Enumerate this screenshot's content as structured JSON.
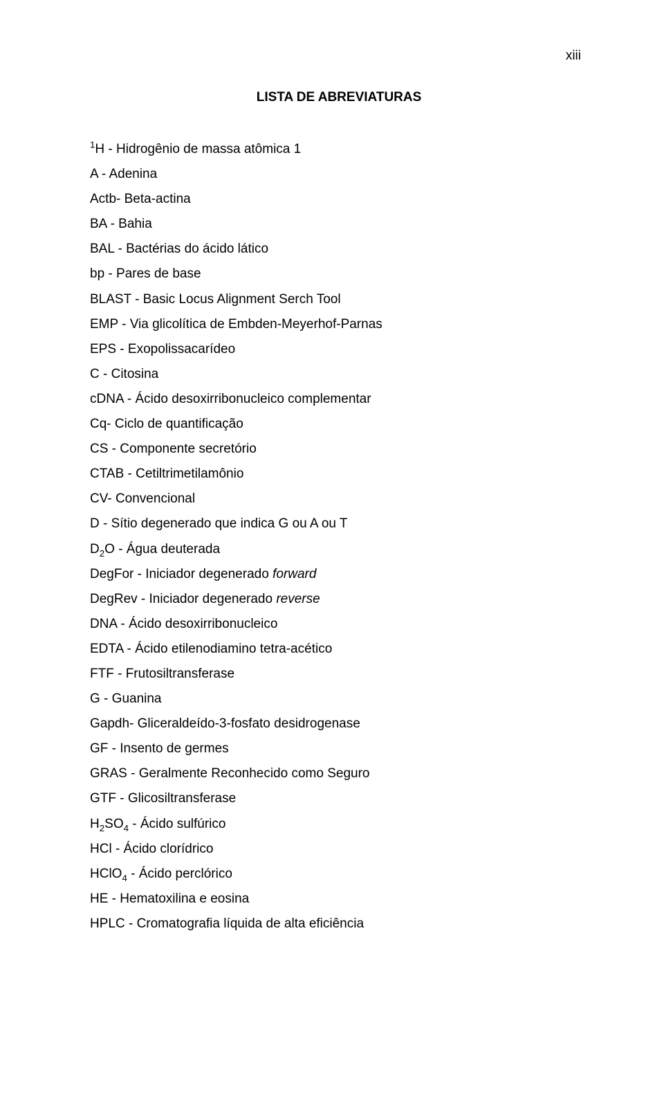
{
  "page_number": "xiii",
  "title": "LISTA DE ABREVIATURAS",
  "colors": {
    "background": "#ffffff",
    "text": "#000000"
  },
  "typography": {
    "body_fontsize_pt": 14,
    "title_fontsize_pt": 14,
    "line_height": 1.9,
    "font_family": "Arial"
  },
  "entries": [
    {
      "prefix_sup": "1",
      "text": "H - Hidrogênio de massa atômica 1"
    },
    {
      "text": "A - Adenina"
    },
    {
      "text": "Actb- Beta-actina"
    },
    {
      "text": "BA - Bahia"
    },
    {
      "text": "BAL - Bactérias do ácido lático"
    },
    {
      "text": "bp - Pares de base"
    },
    {
      "text": "BLAST - Basic Locus Alignment Serch Tool"
    },
    {
      "text": "EMP - Via glicolítica de Embden-Meyerhof-Parnas"
    },
    {
      "text": "EPS - Exopolissacarídeo"
    },
    {
      "text": "C - Citosina"
    },
    {
      "text": "cDNA - Ácido desoxirribonucleico complementar"
    },
    {
      "text": "Cq- Ciclo de quantificação"
    },
    {
      "text": "CS - Componente secretório"
    },
    {
      "text": "CTAB - Cetiltrimetilamônio"
    },
    {
      "text": "CV- Convencional"
    },
    {
      "text": "D - Sítio degenerado que indica G ou A ou T"
    },
    {
      "before_sub": "D",
      "sub": "2",
      "text": "O - Água deuterada"
    },
    {
      "text": "DegFor - Iniciador degenerado ",
      "italic_suffix": "forward"
    },
    {
      "text": "DegRev - Iniciador degenerado ",
      "italic_suffix": "reverse"
    },
    {
      "text": "DNA - Ácido desoxirribonucleico"
    },
    {
      "text": "EDTA - Ácido etilenodiamino tetra-acético"
    },
    {
      "text": "FTF - Frutosiltransferase"
    },
    {
      "text": "G - Guanina"
    },
    {
      "text": "Gapdh- Gliceraldeído-3-fosfato desidrogenase"
    },
    {
      "text": "GF - Insento de germes"
    },
    {
      "text": "GRAS - Geralmente Reconhecido como Seguro"
    },
    {
      "text": "GTF - Glicosiltransferase"
    },
    {
      "before_sub": "H",
      "sub": "2",
      "after_sub": "SO",
      "sub2": "4",
      "text": " - Ácido sulfúrico"
    },
    {
      "text": "HCl - Ácido clorídrico"
    },
    {
      "before_sub": "HClO",
      "sub": "4",
      "text": " - Ácido perclórico"
    },
    {
      "text": "HE - Hematoxilina e eosina"
    },
    {
      "text": "HPLC - Cromatografia líquida de alta eficiência"
    }
  ]
}
